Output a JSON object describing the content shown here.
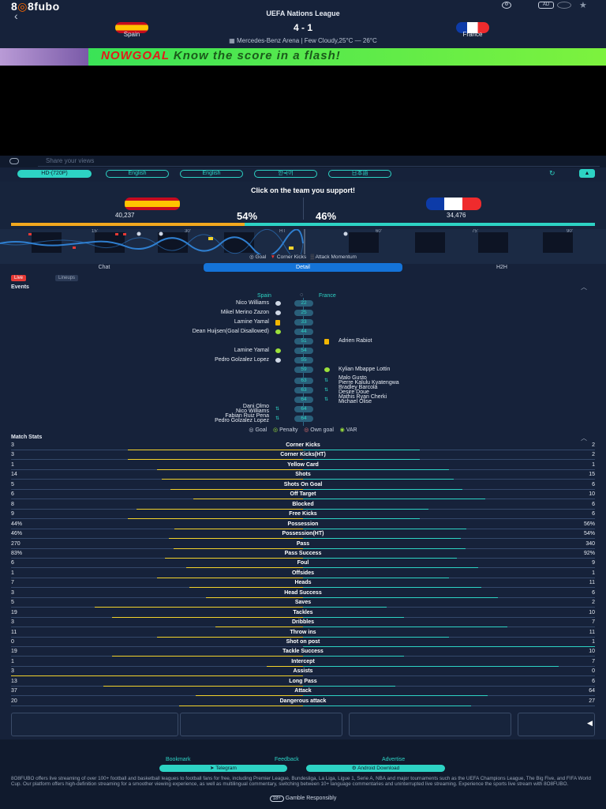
{
  "header": {
    "logo_left": "8",
    "logo_mid": "⓪",
    "logo_right": "8fubo",
    "back_icon": "chevron-left",
    "league": "UEFA Nations League",
    "home_team": "Spain",
    "away_team": "France",
    "score": "4 - 1",
    "venue": "Mercedes-Benz Arena | Few Cloudy,25°C — 26°C",
    "ad_label": "AD"
  },
  "banner": {
    "brand": "NOWGOAL",
    "tagline": "Know the score in a flash!"
  },
  "share": {
    "placeholder": "Share your views"
  },
  "controls": {
    "quality": "HD-(720P)",
    "languages": [
      "English",
      "English",
      "한국어",
      "日本語"
    ]
  },
  "support": {
    "title": "Click on the team you support!",
    "home_count": "40,237",
    "home_pct": "54%",
    "away_count": "34,476",
    "away_pct": "46%",
    "home_share": 0.54
  },
  "momentum": {
    "ticks": [
      "15'",
      "30'",
      "HT",
      "60'",
      "75'",
      "90'"
    ],
    "legend_goal": "Goal",
    "legend_corner": "Corner Kicks",
    "legend_attack": "Attack Momentum"
  },
  "tabs": [
    "Chat",
    "Detail",
    "H2H"
  ],
  "events_header": {
    "live": "Live",
    "lineups": "Lineups",
    "title": "Events",
    "home": "Spain",
    "away": "France"
  },
  "events": [
    {
      "minute": "22",
      "home": "Nico Williams",
      "away": "",
      "icon": "goal"
    },
    {
      "minute": "25",
      "home": "Mikel Merino Zazon",
      "away": "",
      "icon": "goal"
    },
    {
      "minute": "33",
      "home": "Lamine Yamal",
      "away": "",
      "icon": "yellow"
    },
    {
      "minute": "44",
      "home": "Dean Huijsen(Goal Disallowed)",
      "away": "",
      "icon": "var"
    },
    {
      "minute": "51",
      "home": "",
      "away": "Adrien Rabiot",
      "icon": "yellow"
    },
    {
      "minute": "54",
      "home": "Lamine Yamal",
      "away": "",
      "icon": "penalty"
    },
    {
      "minute": "55",
      "home": "Pedro Golzalez Lopez",
      "away": "",
      "icon": "goal"
    },
    {
      "minute": "59",
      "home": "",
      "away": "Kylian Mbappe Lottin",
      "icon": "penalty"
    },
    {
      "minute": "63",
      "home": "",
      "away": "Malo Gusto\nPierre Kalulu Kyatengwa",
      "icon": "sub"
    },
    {
      "minute": "63",
      "home": "",
      "away": "Bradley Barcola\nDesire Doue",
      "icon": "sub"
    },
    {
      "minute": "64",
      "home": "",
      "away": "Mathis Ryan Cherki\nMichael Olise",
      "icon": "sub"
    },
    {
      "minute": "64",
      "home": "Dani Olmo\nNico Williams",
      "away": "",
      "icon": "sub"
    },
    {
      "minute": "64",
      "home": "Fabian Ruiz Pena\nPedro Golzalez Lopez",
      "away": "",
      "icon": "sub"
    }
  ],
  "events_legend": [
    "Goal",
    "Penalty",
    "Own goal",
    "VAR"
  ],
  "stats_title": "Match Stats",
  "stats": [
    {
      "name": "Corner Kicks",
      "home": "3",
      "away": "2",
      "h": 3,
      "a": 2
    },
    {
      "name": "Corner Kicks(HT)",
      "home": "3",
      "away": "2",
      "h": 3,
      "a": 2
    },
    {
      "name": "Yellow Card",
      "home": "1",
      "away": "1",
      "h": 1,
      "a": 1
    },
    {
      "name": "Shots",
      "home": "14",
      "away": "15",
      "h": 14,
      "a": 15
    },
    {
      "name": "Shots On Goal",
      "home": "5",
      "away": "6",
      "h": 5,
      "a": 6
    },
    {
      "name": "Off Target",
      "home": "6",
      "away": "10",
      "h": 6,
      "a": 10
    },
    {
      "name": "Blocked",
      "home": "8",
      "away": "6",
      "h": 8,
      "a": 6
    },
    {
      "name": "Free Kicks",
      "home": "9",
      "away": "6",
      "h": 9,
      "a": 6
    },
    {
      "name": "Possession",
      "home": "44%",
      "away": "56%",
      "h": 44,
      "a": 56
    },
    {
      "name": "Possession(HT)",
      "home": "46%",
      "away": "54%",
      "h": 46,
      "a": 54
    },
    {
      "name": "Pass",
      "home": "270",
      "away": "340",
      "h": 270,
      "a": 340
    },
    {
      "name": "Pass Success",
      "home": "83%",
      "away": "92%",
      "h": 83,
      "a": 92
    },
    {
      "name": "Foul",
      "home": "6",
      "away": "9",
      "h": 6,
      "a": 9
    },
    {
      "name": "Offsides",
      "home": "1",
      "away": "1",
      "h": 1,
      "a": 1
    },
    {
      "name": "Heads",
      "home": "7",
      "away": "11",
      "h": 7,
      "a": 11
    },
    {
      "name": "Head Success",
      "home": "3",
      "away": "6",
      "h": 3,
      "a": 6
    },
    {
      "name": "Saves",
      "home": "5",
      "away": "2",
      "h": 5,
      "a": 2
    },
    {
      "name": "Tackles",
      "home": "19",
      "away": "10",
      "h": 19,
      "a": 10
    },
    {
      "name": "Dribbles",
      "home": "3",
      "away": "7",
      "h": 3,
      "a": 7
    },
    {
      "name": "Throw ins",
      "home": "11",
      "away": "11",
      "h": 11,
      "a": 11
    },
    {
      "name": "Shot on post",
      "home": "0",
      "away": "1",
      "h": 0,
      "a": 1
    },
    {
      "name": "Tackle Success",
      "home": "19",
      "away": "10",
      "h": 19,
      "a": 10
    },
    {
      "name": "Intercept",
      "home": "1",
      "away": "7",
      "h": 1,
      "a": 7
    },
    {
      "name": "Assists",
      "home": "3",
      "away": "0",
      "h": 3,
      "a": 0
    },
    {
      "name": "Long Pass",
      "home": "13",
      "away": "6",
      "h": 13,
      "a": 6
    },
    {
      "name": "Attack",
      "home": "37",
      "away": "64",
      "h": 37,
      "a": 64
    },
    {
      "name": "Dangerous attack",
      "home": "20",
      "away": "27",
      "h": 20,
      "a": 27
    }
  ],
  "footer": {
    "links": [
      "Bookmark",
      "Feedback",
      "Advertise"
    ],
    "telegram": "Telegram",
    "android": "Android Download",
    "description": "8O8FUBO offers live streaming of over 100+ football and basketball leagues to football fans for free, including Premier League, Bundesliga, La Liga, Ligue 1, Serie A, NBA and major tournaments such as the UEFA Champions League, The Big Five, and FIFA World Cup. Our platform offers high-definition streaming for a smoother viewing experience, as well as multilingual commentary, switching between 10+ language commentaries and uninterrupted live streaming. Experience the sports live stream with 8O8FUBO.",
    "age": "18+",
    "gamble": "Gamble Responsibly"
  },
  "colors": {
    "bg": "#16223a",
    "accent": "#2dd3c4",
    "home_bar": "#f2d22c",
    "away_bar": "#2dd3c4",
    "live": "#e53935",
    "tab_active": "#1473d8"
  }
}
